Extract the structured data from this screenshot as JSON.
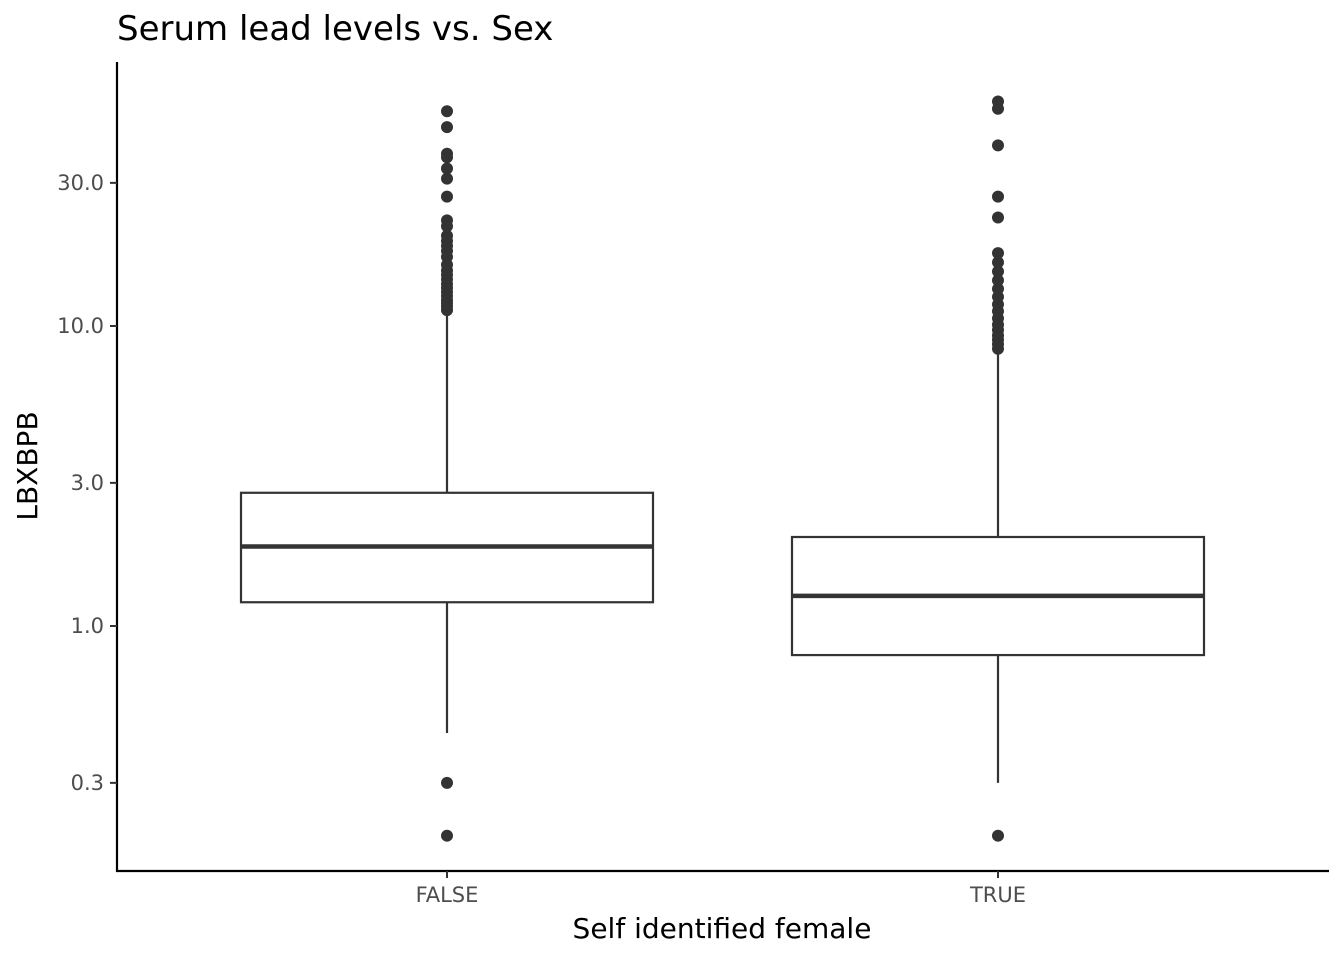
{
  "chart_data": {
    "type": "boxplot",
    "title": "Serum lead levels vs. Sex",
    "xlabel": "Self identified female",
    "ylabel": "LBXBPB",
    "yscale": "log10",
    "ylim": [
      0.2,
      70
    ],
    "yticks": [
      {
        "value": 0.3,
        "label": "0.3"
      },
      {
        "value": 1.0,
        "label": "1.0"
      },
      {
        "value": 3.0,
        "label": "3.0"
      },
      {
        "value": 10.0,
        "label": "10.0"
      },
      {
        "value": 30.0,
        "label": "30.0"
      }
    ],
    "categories": [
      "FALSE",
      "TRUE"
    ],
    "boxes": [
      {
        "category": "FALSE",
        "lower_whisker": 0.44,
        "q1": 1.2,
        "median": 1.84,
        "q3": 2.78,
        "upper_whisker": 11.2,
        "outliers": [
          0.3,
          0.2,
          11.3,
          11.6,
          11.9,
          12.2,
          12.6,
          13.0,
          13.4,
          13.8,
          14.3,
          14.8,
          15.3,
          16.0,
          17.0,
          17.8,
          18.5,
          19.2,
          20.0,
          21.5,
          22.5,
          27.0,
          31.0,
          33.5,
          36.5,
          37.5,
          46.0,
          52.0
        ]
      },
      {
        "category": "TRUE",
        "lower_whisker": 0.3,
        "q1": 0.8,
        "median": 1.26,
        "q3": 1.98,
        "upper_whisker": 8.3,
        "outliers": [
          0.2,
          8.4,
          8.7,
          9.0,
          9.3,
          9.7,
          10.1,
          10.6,
          11.2,
          11.8,
          12.5,
          13.3,
          14.2,
          15.2,
          16.3,
          17.5,
          23.0,
          27.0,
          40.0,
          53.0,
          56.0
        ]
      }
    ],
    "colors": {
      "box_outline": "#333333",
      "box_fill": "#ffffff",
      "outlier": "#333333",
      "axis": "#000000",
      "tick_text": "#4d4d4d"
    },
    "grid": false,
    "legend": "none"
  }
}
